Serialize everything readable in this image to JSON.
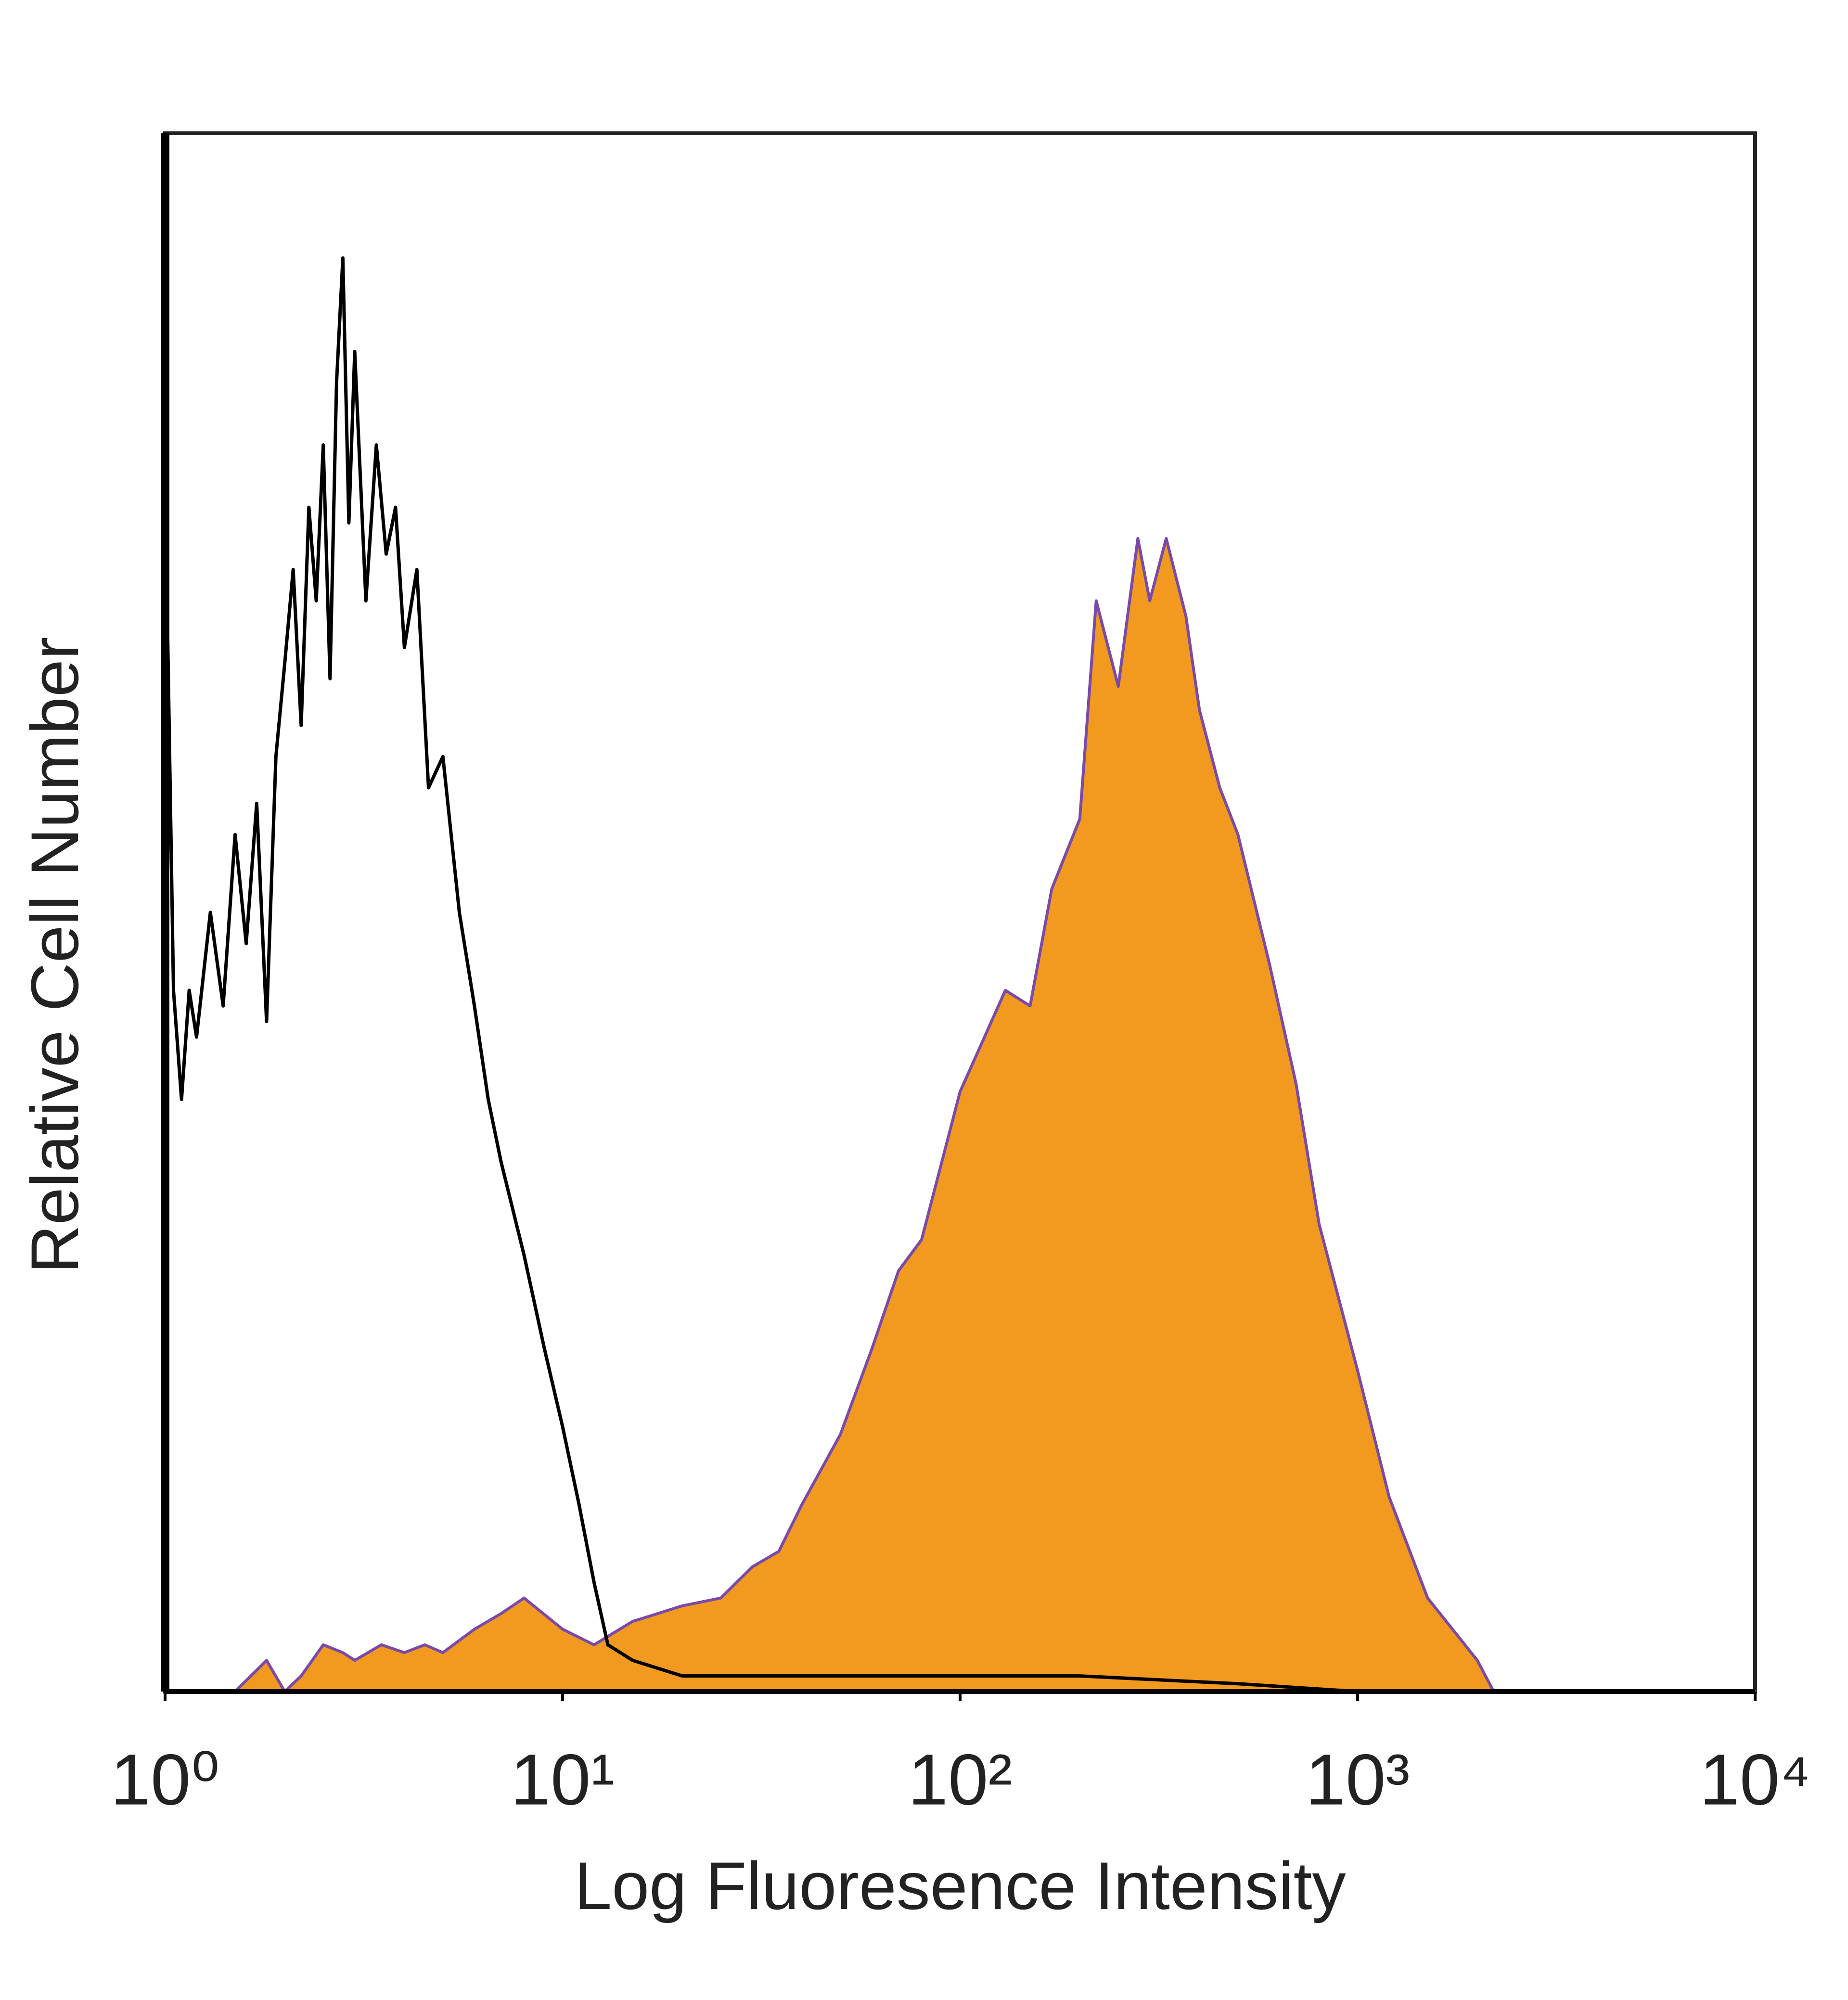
{
  "chart_data": {
    "type": "line",
    "xlabel": "Log Fluoresence Intensity",
    "ylabel": "Relative Cell Number",
    "xscale": "log",
    "xlim": [
      1,
      10000
    ],
    "ylim": [
      0,
      100
    ],
    "xticks": [
      {
        "value": 1,
        "label": "10⁰"
      },
      {
        "value": 10,
        "label": "10¹"
      },
      {
        "value": 100,
        "label": "10²"
      },
      {
        "value": 1000,
        "label": "10³"
      },
      {
        "value": 10000,
        "label": "10⁴"
      }
    ],
    "series": [
      {
        "color": "#f29a1f",
        "edge_color": "#7a4aa8",
        "filled": true,
        "x": [
          1,
          1.5,
          1.8,
          2,
          2.2,
          2.5,
          2.8,
          3,
          3.5,
          4,
          4.5,
          5,
          6,
          7,
          8,
          10,
          12,
          15,
          20,
          25,
          30,
          35,
          40,
          50,
          60,
          70,
          80,
          100,
          130,
          150,
          170,
          200,
          220,
          250,
          280,
          300,
          330,
          370,
          400,
          450,
          500,
          600,
          700,
          800,
          1000,
          1200,
          1500,
          2000,
          2200,
          10000
        ],
        "values": [
          0,
          0,
          2,
          0,
          1,
          3,
          2.5,
          2,
          3,
          2.5,
          3,
          2.5,
          4,
          5,
          6,
          4,
          3,
          4.5,
          5.5,
          6,
          8,
          9,
          12,
          16.5,
          22,
          27,
          29,
          38.5,
          45,
          44,
          51.5,
          56,
          70,
          64.5,
          74,
          70,
          74,
          69,
          63,
          58,
          55,
          46.7,
          39,
          30,
          20.6,
          12.5,
          6,
          2,
          0,
          0
        ]
      },
      {
        "color": "#000000",
        "filled": false,
        "x": [
          1,
          1.05,
          1.1,
          1.15,
          1.2,
          1.3,
          1.4,
          1.5,
          1.6,
          1.7,
          1.8,
          1.9,
          2,
          2.1,
          2.2,
          2.3,
          2.4,
          2.5,
          2.6,
          2.7,
          2.8,
          2.9,
          3,
          3.2,
          3.4,
          3.6,
          3.8,
          4,
          4.3,
          4.6,
          5,
          5.5,
          6,
          6.5,
          7,
          8,
          9,
          10,
          11,
          12,
          13,
          15,
          20,
          30,
          50,
          100,
          200,
          500,
          1000,
          10000
        ],
        "values": [
          78,
          45,
          38,
          45,
          42,
          50,
          44,
          55,
          48,
          57,
          43,
          60,
          66,
          72,
          62,
          76,
          70,
          80,
          65,
          84,
          92,
          75,
          86,
          70,
          80,
          73,
          76,
          67,
          72,
          58,
          60,
          50,
          44,
          38,
          34,
          28,
          22,
          17,
          12,
          7,
          3,
          2,
          1,
          1,
          1,
          1,
          1,
          0.5,
          0,
          0
        ]
      }
    ]
  }
}
